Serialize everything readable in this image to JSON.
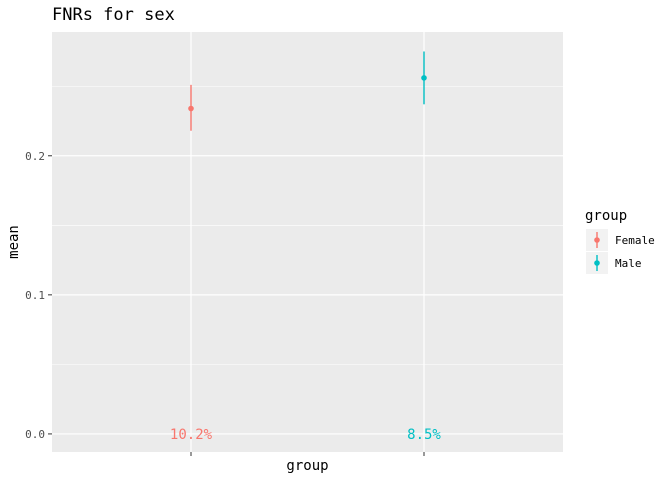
{
  "chart_data": {
    "type": "scatter",
    "title": "FNRs for sex",
    "xlabel": "group",
    "ylabel": "mean",
    "categories": [
      "Female",
      "Male"
    ],
    "series": [
      {
        "name": "Female",
        "category": "Female",
        "mean": 0.234,
        "lower": 0.218,
        "upper": 0.251,
        "label": "10.2%",
        "color": "#F8766D"
      },
      {
        "name": "Male",
        "category": "Male",
        "mean": 0.256,
        "lower": 0.237,
        "upper": 0.275,
        "label": "8.5%",
        "color": "#00BFC4"
      }
    ],
    "ylim": [
      -0.013,
      0.289
    ],
    "yticks": [
      "0.0",
      "0.1",
      "0.2"
    ],
    "ytick_values": [
      0.0,
      0.1,
      0.2
    ],
    "show_x_tick_labels": false,
    "grid": true,
    "panel_background": "#EBEBEB",
    "legend": {
      "title": "group",
      "position": "right",
      "entries": [
        "Female",
        "Male"
      ]
    }
  }
}
